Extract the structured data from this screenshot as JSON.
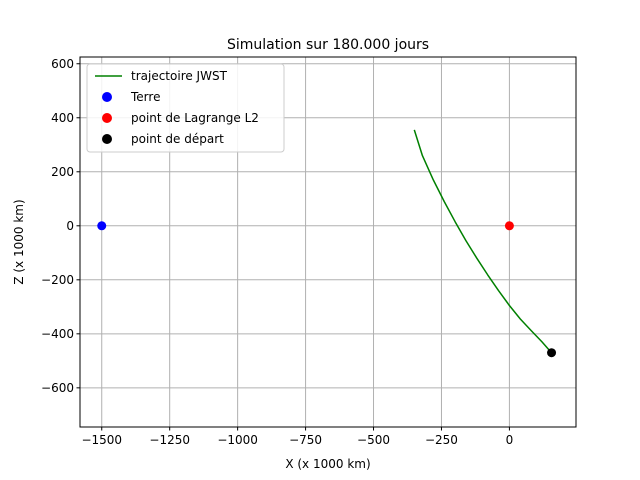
{
  "chart_data": {
    "type": "line",
    "title": "Simulation sur 180.000 jours",
    "xlabel": "X (x 1000 km)",
    "ylabel": "Z (x 1000 km)",
    "xlim": [
      -1580,
      245
    ],
    "ylim": [
      -745,
      625
    ],
    "xticks": [
      -1500,
      -1250,
      -1000,
      -750,
      -500,
      -250,
      0
    ],
    "xtick_labels": [
      "−1500",
      "−1250",
      "−1000",
      "−750",
      "−500",
      "−250",
      "0"
    ],
    "yticks": [
      -600,
      -400,
      -200,
      0,
      200,
      400,
      600
    ],
    "ytick_labels": [
      "−600",
      "−400",
      "−200",
      "0",
      "200",
      "400",
      "600"
    ],
    "grid": true,
    "legend_position": "upper-left",
    "series": [
      {
        "name": "trajectoire JWST",
        "kind": "line",
        "color": "#008000",
        "x": [
          155,
          120,
          80,
          40,
          0,
          -40,
          -80,
          -120,
          -160,
          -200,
          -240,
          -280,
          -320,
          -350
        ],
        "y": [
          -470,
          -430,
          -388,
          -345,
          -295,
          -240,
          -182,
          -120,
          -55,
          15,
          90,
          170,
          260,
          355
        ]
      },
      {
        "name": "Terre",
        "kind": "point",
        "color": "#0000ff",
        "x": [
          -1500
        ],
        "y": [
          0
        ]
      },
      {
        "name": "point de Lagrange L2",
        "kind": "point",
        "color": "#ff0000",
        "x": [
          0
        ],
        "y": [
          0
        ]
      },
      {
        "name": "point de départ",
        "kind": "point",
        "color": "#000000",
        "x": [
          155
        ],
        "y": [
          -470
        ]
      }
    ]
  }
}
